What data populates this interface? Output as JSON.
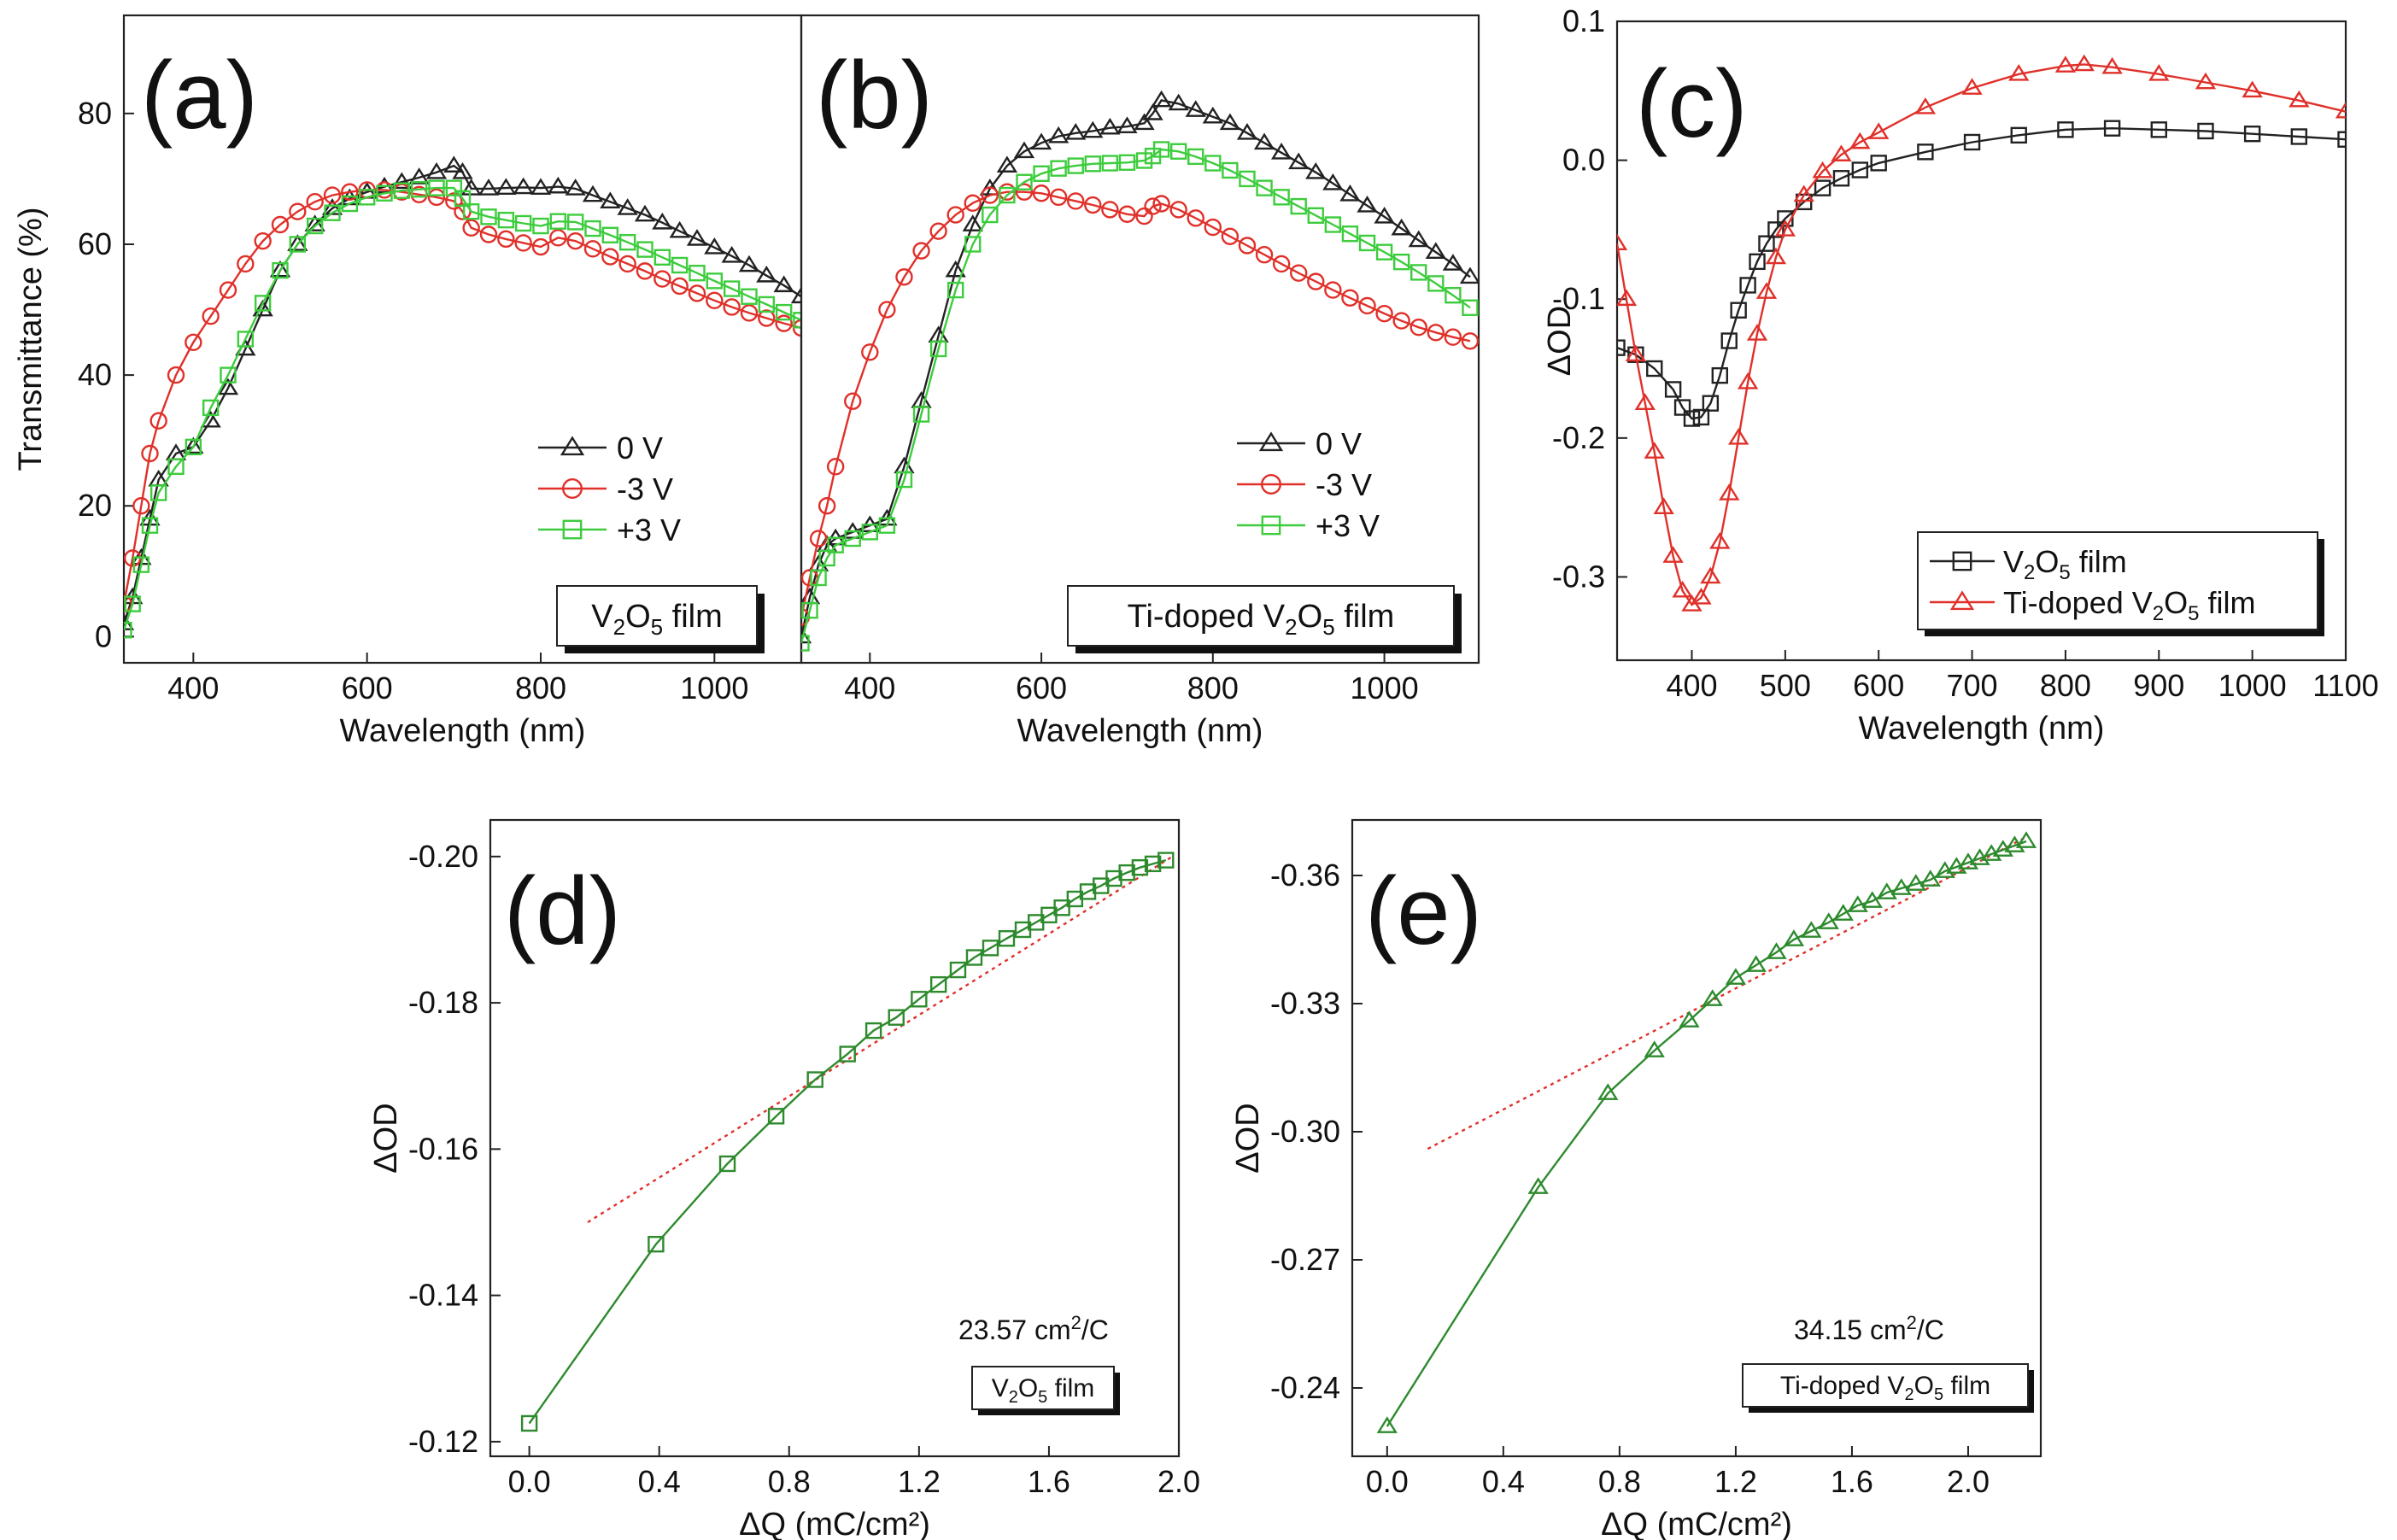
{
  "chart_data": [
    {
      "panel": "(a)",
      "type": "line",
      "xlabel": "Wavelength (nm)",
      "ylabel": "Transmittance (%)",
      "xlim": [
        320,
        1100
      ],
      "ylim": [
        -4,
        95
      ],
      "xticks": [
        400,
        600,
        800,
        1000
      ],
      "yticks": [
        0,
        20,
        40,
        60,
        80
      ],
      "legend_position": "bottom-right",
      "box_label": {
        "main": "V",
        "sub1": "2",
        "mid": "O",
        "sub2": "5",
        "tail": " film"
      },
      "series": [
        {
          "name": "0 V",
          "marker": "triangle",
          "color": "#222222",
          "x": [
            320,
            330,
            340,
            350,
            360,
            380,
            400,
            420,
            440,
            460,
            480,
            500,
            520,
            540,
            560,
            580,
            600,
            620,
            640,
            660,
            680,
            700,
            710,
            720,
            740,
            760,
            780,
            800,
            820,
            840,
            860,
            880,
            900,
            920,
            940,
            960,
            980,
            1000,
            1020,
            1040,
            1060,
            1080,
            1100
          ],
          "y": [
            2,
            6,
            12,
            18,
            24,
            28,
            29,
            33,
            38,
            44,
            50,
            56,
            60,
            63,
            65.5,
            67,
            68,
            68.8,
            69.5,
            70.2,
            71,
            72,
            71,
            68.5,
            68.5,
            68.6,
            68.7,
            68.6,
            68.8,
            68.5,
            67.5,
            66.5,
            65.5,
            64.5,
            63.3,
            62,
            60.8,
            59.5,
            58.2,
            56.8,
            55.2,
            53.7,
            52
          ]
        },
        {
          "name": "-3 V",
          "marker": "circle",
          "color": "#e0302a",
          "x": [
            320,
            330,
            340,
            350,
            360,
            380,
            400,
            420,
            440,
            460,
            480,
            500,
            520,
            540,
            560,
            580,
            600,
            620,
            640,
            660,
            680,
            700,
            710,
            720,
            740,
            760,
            780,
            800,
            820,
            840,
            860,
            880,
            900,
            920,
            940,
            960,
            980,
            1000,
            1020,
            1040,
            1060,
            1080,
            1100
          ],
          "y": [
            5,
            12,
            20,
            28,
            33,
            40,
            45,
            49,
            53,
            57,
            60.5,
            63,
            65,
            66.5,
            67.5,
            68,
            68.3,
            68.3,
            68,
            67.6,
            67.2,
            66.6,
            65,
            62.5,
            61.5,
            60.8,
            60.2,
            59.6,
            61,
            60.5,
            59.3,
            58.1,
            57,
            55.9,
            54.7,
            53.6,
            52.5,
            51.4,
            50.4,
            49.5,
            48.7,
            47.9,
            47.2
          ]
        },
        {
          "name": "+3 V",
          "marker": "square",
          "color": "#3dcc3d",
          "x": [
            320,
            330,
            340,
            350,
            360,
            380,
            400,
            420,
            440,
            460,
            480,
            500,
            520,
            540,
            560,
            580,
            600,
            620,
            640,
            660,
            680,
            700,
            710,
            720,
            740,
            760,
            780,
            800,
            820,
            840,
            860,
            880,
            900,
            920,
            940,
            960,
            980,
            1000,
            1020,
            1040,
            1060,
            1080,
            1100
          ],
          "y": [
            1,
            5,
            11,
            17,
            22,
            26,
            29,
            35,
            40,
            45.5,
            51,
            56,
            60,
            62.8,
            64.8,
            66.2,
            67.2,
            67.8,
            68.2,
            68.4,
            68.6,
            68.6,
            67,
            65,
            64.2,
            63.7,
            63.2,
            62.8,
            63.5,
            63.4,
            62.4,
            61.4,
            60.3,
            59.2,
            58,
            56.8,
            55.6,
            54.4,
            53.2,
            52,
            50.8,
            49.6,
            48.4
          ]
        }
      ]
    },
    {
      "panel": "(b)",
      "type": "line",
      "xlabel": "Wavelength (nm)",
      "xlim": [
        320,
        1110
      ],
      "ylim": [
        -4,
        95
      ],
      "xticks": [
        400,
        600,
        800,
        1000
      ],
      "legend_position": "bottom-right",
      "box_label": {
        "main": "Ti-doped V",
        "sub1": "2",
        "mid": "O",
        "sub2": "5",
        "tail": " film"
      },
      "series": [
        {
          "name": "0 V",
          "marker": "triangle",
          "color": "#222222",
          "x": [
            320,
            330,
            340,
            350,
            360,
            380,
            400,
            420,
            440,
            460,
            480,
            500,
            520,
            540,
            560,
            580,
            600,
            620,
            640,
            660,
            680,
            700,
            720,
            730,
            740,
            760,
            780,
            800,
            820,
            840,
            860,
            880,
            900,
            920,
            940,
            960,
            980,
            1000,
            1020,
            1040,
            1060,
            1080,
            1100
          ],
          "y": [
            0,
            6,
            11,
            14,
            15,
            16,
            17,
            18,
            26,
            36,
            46,
            56,
            63,
            68.5,
            72,
            74.2,
            75.5,
            76.5,
            77,
            77.3,
            77.8,
            78,
            78.5,
            80,
            82,
            81.5,
            80.5,
            79.5,
            78.5,
            77,
            75.5,
            74,
            72.5,
            71,
            69.3,
            67.6,
            65.9,
            64.2,
            62.4,
            60.6,
            58.8,
            57,
            55
          ]
        },
        {
          "name": "-3 V",
          "marker": "circle",
          "color": "#e0302a",
          "x": [
            320,
            330,
            340,
            350,
            360,
            380,
            400,
            420,
            440,
            460,
            480,
            500,
            520,
            540,
            560,
            580,
            600,
            620,
            640,
            660,
            680,
            700,
            720,
            730,
            740,
            760,
            780,
            800,
            820,
            840,
            860,
            880,
            900,
            920,
            940,
            960,
            980,
            1000,
            1020,
            1040,
            1060,
            1080,
            1100
          ],
          "y": [
            3,
            9,
            15,
            20,
            26,
            36,
            43.5,
            50,
            55,
            59,
            62,
            64.5,
            66.3,
            67.5,
            68,
            68,
            67.8,
            67.2,
            66.6,
            66,
            65.3,
            64.6,
            64.3,
            65.8,
            66.2,
            65.3,
            64,
            62.6,
            61.2,
            59.8,
            58.4,
            57,
            55.6,
            54.3,
            53,
            51.8,
            50.6,
            49.4,
            48.3,
            47.3,
            46.5,
            45.8,
            45.2
          ]
        },
        {
          "name": "+3 V",
          "marker": "square",
          "color": "#3dcc3d",
          "x": [
            320,
            330,
            340,
            350,
            360,
            380,
            400,
            420,
            440,
            460,
            480,
            500,
            520,
            540,
            560,
            580,
            600,
            620,
            640,
            660,
            680,
            700,
            720,
            730,
            740,
            760,
            780,
            800,
            820,
            840,
            860,
            880,
            900,
            920,
            940,
            960,
            980,
            1000,
            1020,
            1040,
            1060,
            1080,
            1100
          ],
          "y": [
            -1,
            4,
            9,
            12,
            14,
            15,
            16,
            17,
            24,
            34,
            44,
            53,
            60,
            64.5,
            67.5,
            69.5,
            70.8,
            71.6,
            72,
            72.3,
            72.4,
            72.5,
            72.8,
            73.5,
            74.5,
            74.2,
            73.4,
            72.4,
            71.3,
            70,
            68.6,
            67.2,
            65.8,
            64.4,
            63,
            61.6,
            60.2,
            58.8,
            57.3,
            55.7,
            54,
            52.2,
            50.3
          ]
        }
      ]
    },
    {
      "panel": "(c)",
      "type": "line",
      "xlabel": "Wavelength (nm)",
      "ylabel": "ΔOD",
      "xlim": [
        320,
        1100
      ],
      "ylim": [
        -0.36,
        0.1
      ],
      "xticks": [
        400,
        500,
        600,
        700,
        800,
        900,
        1000,
        1100
      ],
      "yticks": [
        0.1,
        0.0,
        -0.1,
        -0.2,
        -0.3
      ],
      "legend_position": "bottom-right",
      "series": [
        {
          "name": "V2O5 film",
          "marker": "square",
          "color": "#222222",
          "x": [
            320,
            340,
            360,
            380,
            390,
            400,
            410,
            420,
            430,
            440,
            450,
            460,
            470,
            480,
            490,
            500,
            520,
            540,
            560,
            580,
            600,
            650,
            700,
            750,
            800,
            850,
            900,
            950,
            1000,
            1050,
            1100
          ],
          "y": [
            -0.135,
            -0.14,
            -0.15,
            -0.165,
            -0.178,
            -0.186,
            -0.185,
            -0.175,
            -0.155,
            -0.13,
            -0.108,
            -0.09,
            -0.073,
            -0.06,
            -0.05,
            -0.042,
            -0.03,
            -0.02,
            -0.013,
            -0.007,
            -0.002,
            0.006,
            0.013,
            0.018,
            0.022,
            0.023,
            0.022,
            0.021,
            0.019,
            0.017,
            0.015
          ]
        },
        {
          "name": "Ti-doped V2O5 film",
          "marker": "triangle",
          "color": "#e0302a",
          "x": [
            320,
            330,
            340,
            350,
            360,
            370,
            380,
            390,
            400,
            410,
            420,
            430,
            440,
            450,
            460,
            470,
            480,
            490,
            500,
            520,
            540,
            560,
            580,
            600,
            650,
            700,
            750,
            800,
            820,
            850,
            900,
            950,
            1000,
            1050,
            1100
          ],
          "y": [
            -0.06,
            -0.1,
            -0.14,
            -0.175,
            -0.21,
            -0.25,
            -0.285,
            -0.31,
            -0.32,
            -0.315,
            -0.3,
            -0.275,
            -0.24,
            -0.2,
            -0.16,
            -0.125,
            -0.095,
            -0.07,
            -0.05,
            -0.025,
            -0.008,
            0.004,
            0.013,
            0.02,
            0.038,
            0.052,
            0.062,
            0.068,
            0.069,
            0.067,
            0.062,
            0.056,
            0.05,
            0.043,
            0.035
          ]
        }
      ]
    },
    {
      "panel": "(d)",
      "type": "line",
      "xlabel": "ΔQ (mC/cm²)",
      "ylabel": "ΔOD",
      "xlim": [
        -0.12,
        2.0
      ],
      "ylim": [
        -0.118,
        -0.205
      ],
      "xticks": [
        0.0,
        0.4,
        0.8,
        1.2,
        1.6,
        2.0
      ],
      "xtick_labels": [
        "0.0",
        "0.4",
        "0.8",
        "1.2",
        "1.6",
        "2.0"
      ],
      "yticks": [
        -0.12,
        -0.14,
        -0.16,
        -0.18,
        -0.2
      ],
      "ytick_labels": [
        "-0.12",
        "-0.14",
        "-0.16",
        "-0.18",
        "-0.20"
      ],
      "annotation": {
        "slope_main": "23.57 cm",
        "slope_sup": "2",
        "slope_tail": "/C"
      },
      "box_label": {
        "main": "V",
        "sub1": "2",
        "mid": "O",
        "sub2": "5",
        "tail": " film"
      },
      "fit_line": {
        "x": [
          0.18,
          1.98
        ],
        "y": [
          -0.15,
          -0.2
        ]
      },
      "series": [
        {
          "name": "data",
          "marker": "square",
          "color": "#2d8a2d",
          "x": [
            0.0,
            0.39,
            0.61,
            0.76,
            0.88,
            0.98,
            1.06,
            1.13,
            1.2,
            1.26,
            1.32,
            1.37,
            1.42,
            1.47,
            1.52,
            1.56,
            1.6,
            1.64,
            1.68,
            1.72,
            1.76,
            1.8,
            1.84,
            1.88,
            1.92,
            1.96
          ],
          "y": [
            -0.1225,
            -0.147,
            -0.158,
            -0.1645,
            -0.1695,
            -0.173,
            -0.1762,
            -0.178,
            -0.1805,
            -0.1825,
            -0.1845,
            -0.1862,
            -0.1875,
            -0.1888,
            -0.19,
            -0.191,
            -0.192,
            -0.193,
            -0.1942,
            -0.1952,
            -0.196,
            -0.197,
            -0.1978,
            -0.1985,
            -0.199,
            -0.1995
          ]
        }
      ]
    },
    {
      "panel": "(e)",
      "type": "line",
      "xlabel": "ΔQ (mC/cm²)",
      "ylabel": "ΔOD",
      "xlim": [
        -0.12,
        2.25
      ],
      "ylim": [
        -0.224,
        -0.373
      ],
      "xticks": [
        0.0,
        0.4,
        0.8,
        1.2,
        1.6,
        2.0
      ],
      "xtick_labels": [
        "0.0",
        "0.4",
        "0.8",
        "1.2",
        "1.6",
        "2.0"
      ],
      "yticks": [
        -0.24,
        -0.27,
        -0.3,
        -0.33,
        -0.36
      ],
      "ytick_labels": [
        "-0.24",
        "-0.27",
        "-0.30",
        "-0.33",
        "-0.36"
      ],
      "annotation": {
        "slope_main": "34.15 cm",
        "slope_sup": "2",
        "slope_tail": "/C"
      },
      "box_label": {
        "main": "Ti-doped V",
        "sub1": "2",
        "mid": "O",
        "sub2": "5",
        "tail": " film"
      },
      "fit_line": {
        "x": [
          0.14,
          2.2
        ],
        "y": [
          -0.296,
          -0.369
        ]
      },
      "series": [
        {
          "name": "data",
          "marker": "triangle",
          "color": "#2d8a2d",
          "x": [
            0.0,
            0.52,
            0.76,
            0.92,
            1.04,
            1.12,
            1.2,
            1.27,
            1.34,
            1.4,
            1.46,
            1.52,
            1.57,
            1.62,
            1.67,
            1.72,
            1.77,
            1.82,
            1.87,
            1.92,
            1.96,
            2.0,
            2.04,
            2.08,
            2.12,
            2.16,
            2.2
          ],
          "y": [
            -0.231,
            -0.287,
            -0.309,
            -0.319,
            -0.326,
            -0.331,
            -0.336,
            -0.339,
            -0.342,
            -0.345,
            -0.347,
            -0.349,
            -0.351,
            -0.353,
            -0.354,
            -0.356,
            -0.357,
            -0.358,
            -0.359,
            -0.361,
            -0.362,
            -0.363,
            -0.364,
            -0.365,
            -0.366,
            -0.367,
            -0.368
          ]
        }
      ]
    }
  ]
}
